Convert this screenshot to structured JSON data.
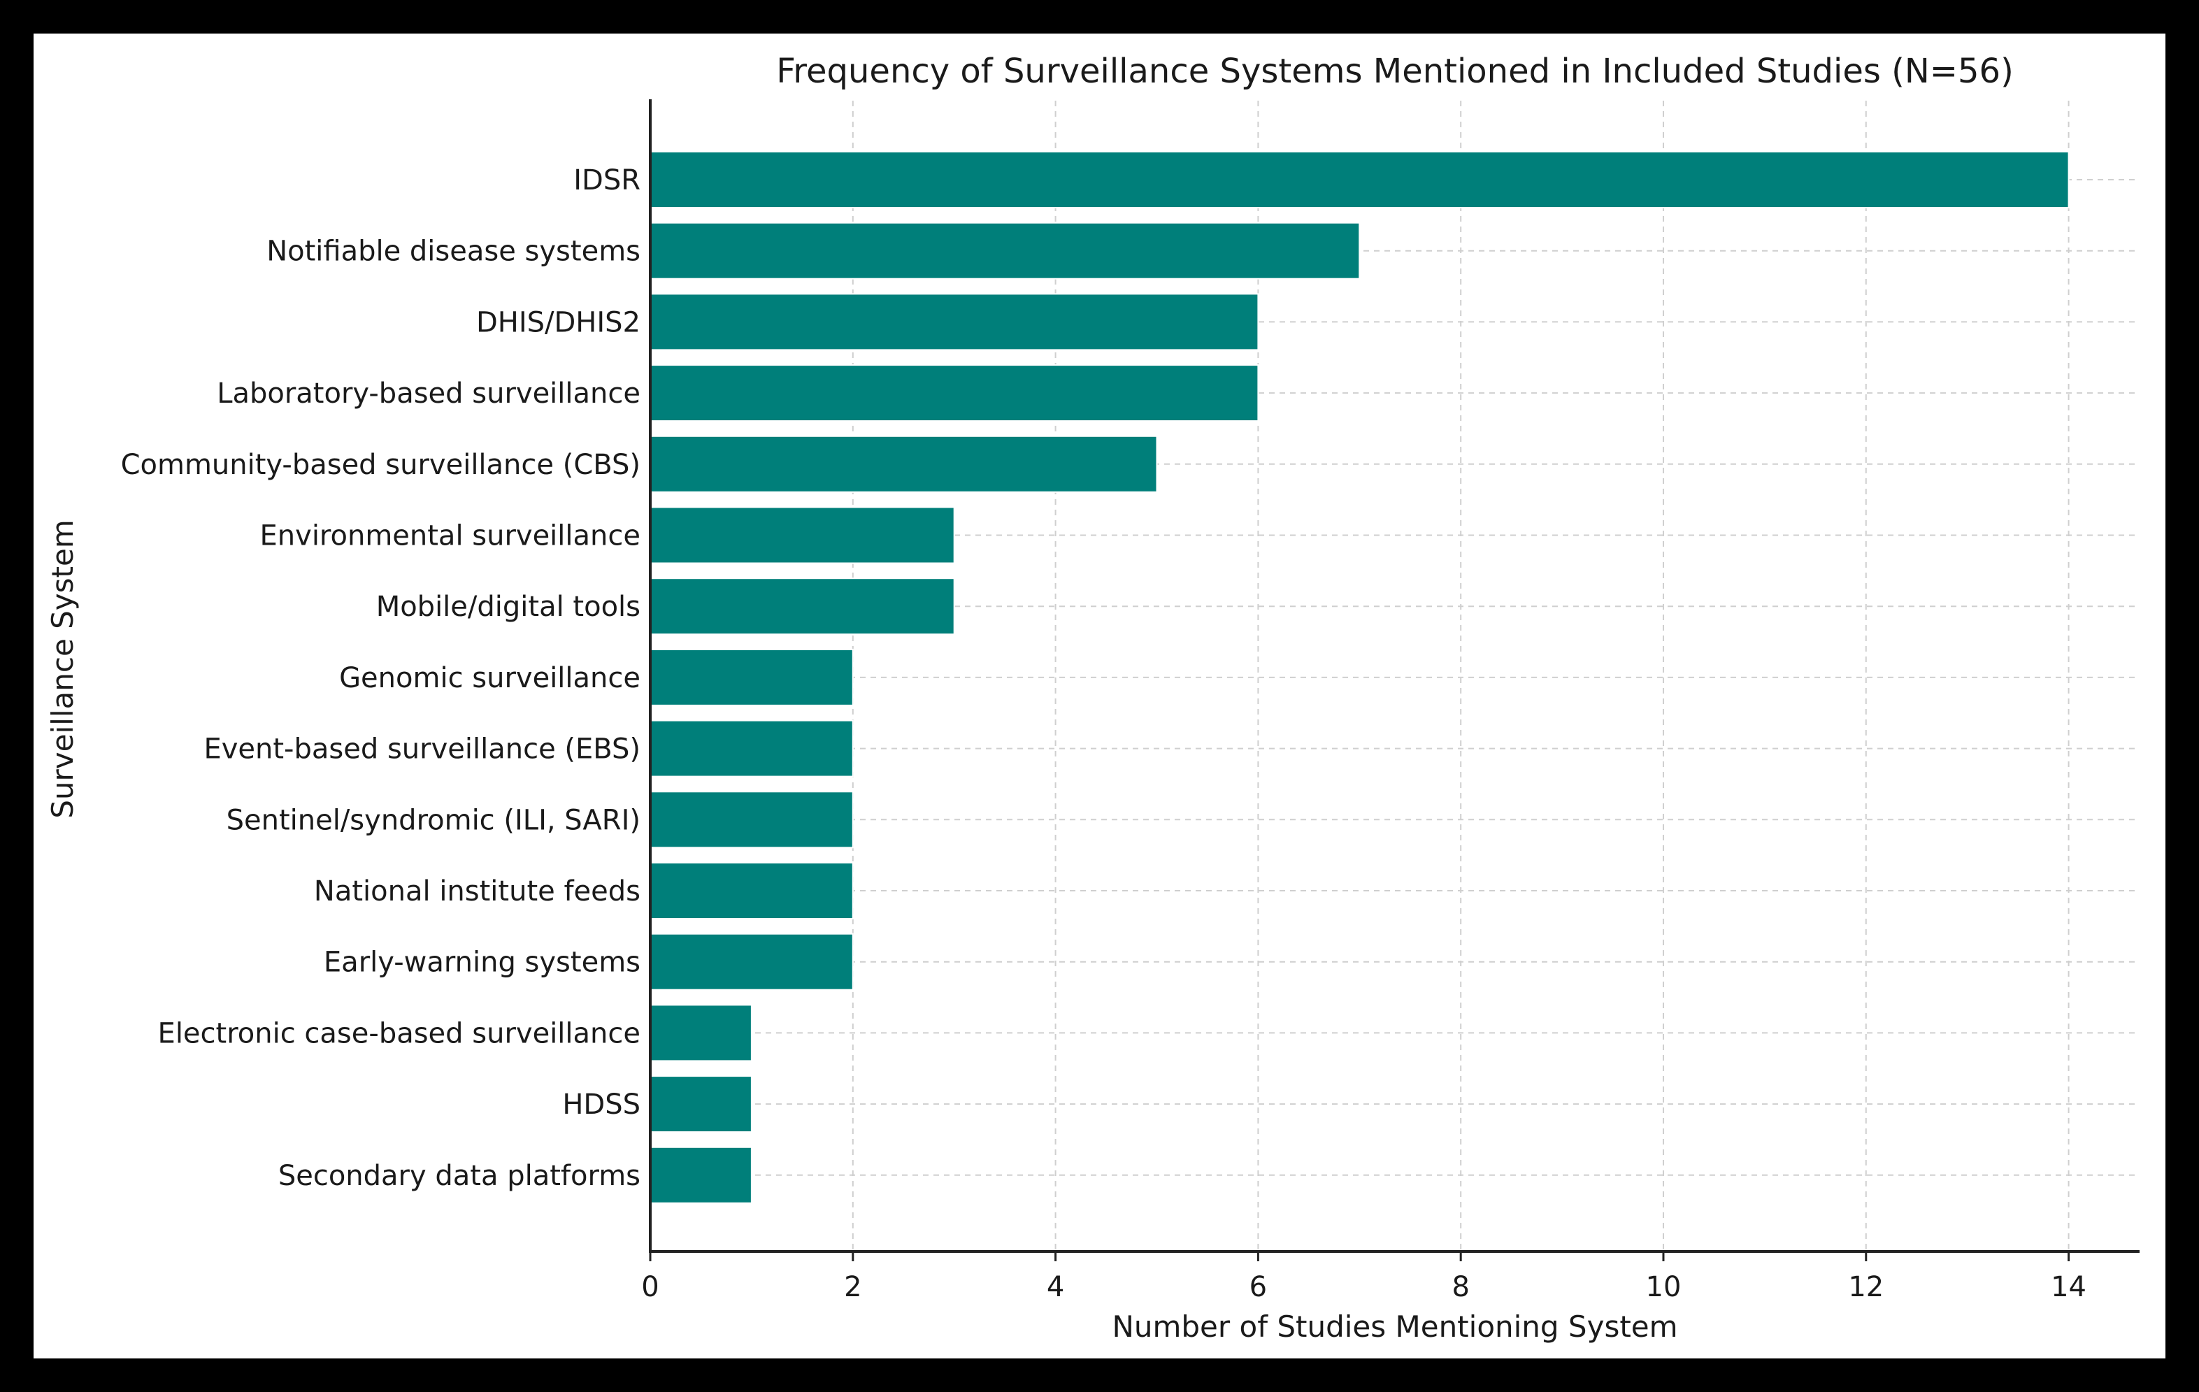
{
  "chart_data": {
    "type": "bar",
    "orientation": "horizontal",
    "title": "Frequency of Surveillance Systems Mentioned in Included Studies (N=56)",
    "xlabel": "Number of Studies Mentioning System",
    "ylabel": "Surveillance System",
    "xlim": [
      0,
      14.7
    ],
    "xticks": [
      0,
      2,
      4,
      6,
      8,
      10,
      12,
      14
    ],
    "grid": true,
    "bar_color": "#007f7a",
    "categories": [
      "IDSR",
      "Notifiable disease systems",
      "DHIS/DHIS2",
      "Laboratory-based surveillance",
      "Community-based surveillance (CBS)",
      "Environmental surveillance",
      "Mobile/digital tools",
      "Genomic surveillance",
      "Event-based surveillance (EBS)",
      "Sentinel/syndromic (ILI, SARI)",
      "National institute feeds",
      "Early-warning systems",
      "Electronic case-based surveillance",
      "HDSS",
      "Secondary data platforms"
    ],
    "values": [
      14,
      7,
      6,
      6,
      5,
      3,
      3,
      2,
      2,
      2,
      2,
      2,
      1,
      1,
      1
    ]
  }
}
